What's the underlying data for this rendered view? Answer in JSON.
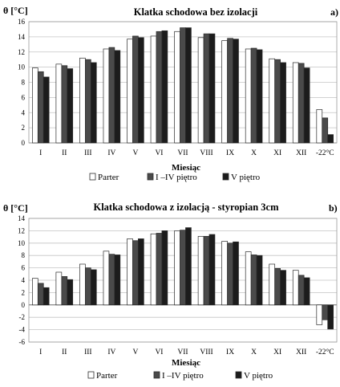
{
  "chart_data": [
    {
      "type": "bar",
      "panel_label": "a)",
      "title": "Klatka schodowa bez izolacji",
      "ylabel": "θ [°C]",
      "xlabel": "Miesiąc",
      "ylim": [
        0,
        16
      ],
      "yticks": [
        0,
        2,
        4,
        6,
        8,
        10,
        12,
        14,
        16
      ],
      "grid": true,
      "legend_position": "bottom",
      "categories": [
        "I",
        "II",
        "III",
        "IV",
        "V",
        "VI",
        "VII",
        "VIII",
        "IX",
        "X",
        "XI",
        "XII",
        "-22°C"
      ],
      "series": [
        {
          "name": "Parter",
          "color": "#ffffff",
          "values": [
            9.9,
            10.4,
            11.2,
            12.4,
            13.7,
            14.1,
            14.7,
            13.9,
            13.5,
            12.4,
            11.1,
            10.6,
            4.4
          ]
        },
        {
          "name": "I –IV piętro",
          "color": "#4a4a4a",
          "values": [
            9.4,
            10.2,
            11.0,
            12.6,
            14.1,
            14.7,
            15.2,
            14.4,
            13.8,
            12.5,
            11.0,
            10.5,
            3.3
          ]
        },
        {
          "name": "V piętro",
          "color": "#1c1c1c",
          "values": [
            8.7,
            9.8,
            10.6,
            12.2,
            13.9,
            14.8,
            15.2,
            14.4,
            13.7,
            12.3,
            10.6,
            9.9,
            1.1
          ]
        }
      ]
    },
    {
      "type": "bar",
      "panel_label": "b)",
      "title": "Klatka schodowa z izolacją - styropian 3cm",
      "ylabel": "θ [°C]",
      "xlabel": "Miesiąc",
      "ylim": [
        -6,
        14
      ],
      "yticks": [
        -6,
        -4,
        -2,
        0,
        2,
        4,
        6,
        8,
        10,
        12,
        14
      ],
      "grid": true,
      "legend_position": "bottom",
      "categories": [
        "I",
        "II",
        "III",
        "IV",
        "V",
        "VI",
        "VII",
        "VIII",
        "IX",
        "X",
        "XI",
        "XII",
        "-22°C"
      ],
      "series": [
        {
          "name": "Parter",
          "color": "#ffffff",
          "values": [
            4.3,
            5.3,
            6.6,
            8.7,
            10.7,
            11.5,
            12.0,
            11.1,
            10.3,
            8.6,
            6.6,
            5.6,
            -3.2
          ]
        },
        {
          "name": "I –IV piętro",
          "color": "#4a4a4a",
          "values": [
            3.5,
            4.6,
            6.0,
            8.2,
            10.4,
            11.6,
            12.1,
            11.1,
            10.0,
            8.1,
            5.9,
            4.8,
            -2.4
          ]
        },
        {
          "name": "V piętro",
          "color": "#1c1c1c",
          "values": [
            2.8,
            4.1,
            5.7,
            8.1,
            10.7,
            12.0,
            12.5,
            11.4,
            10.2,
            8.0,
            5.6,
            4.4,
            -3.9
          ]
        }
      ]
    }
  ]
}
